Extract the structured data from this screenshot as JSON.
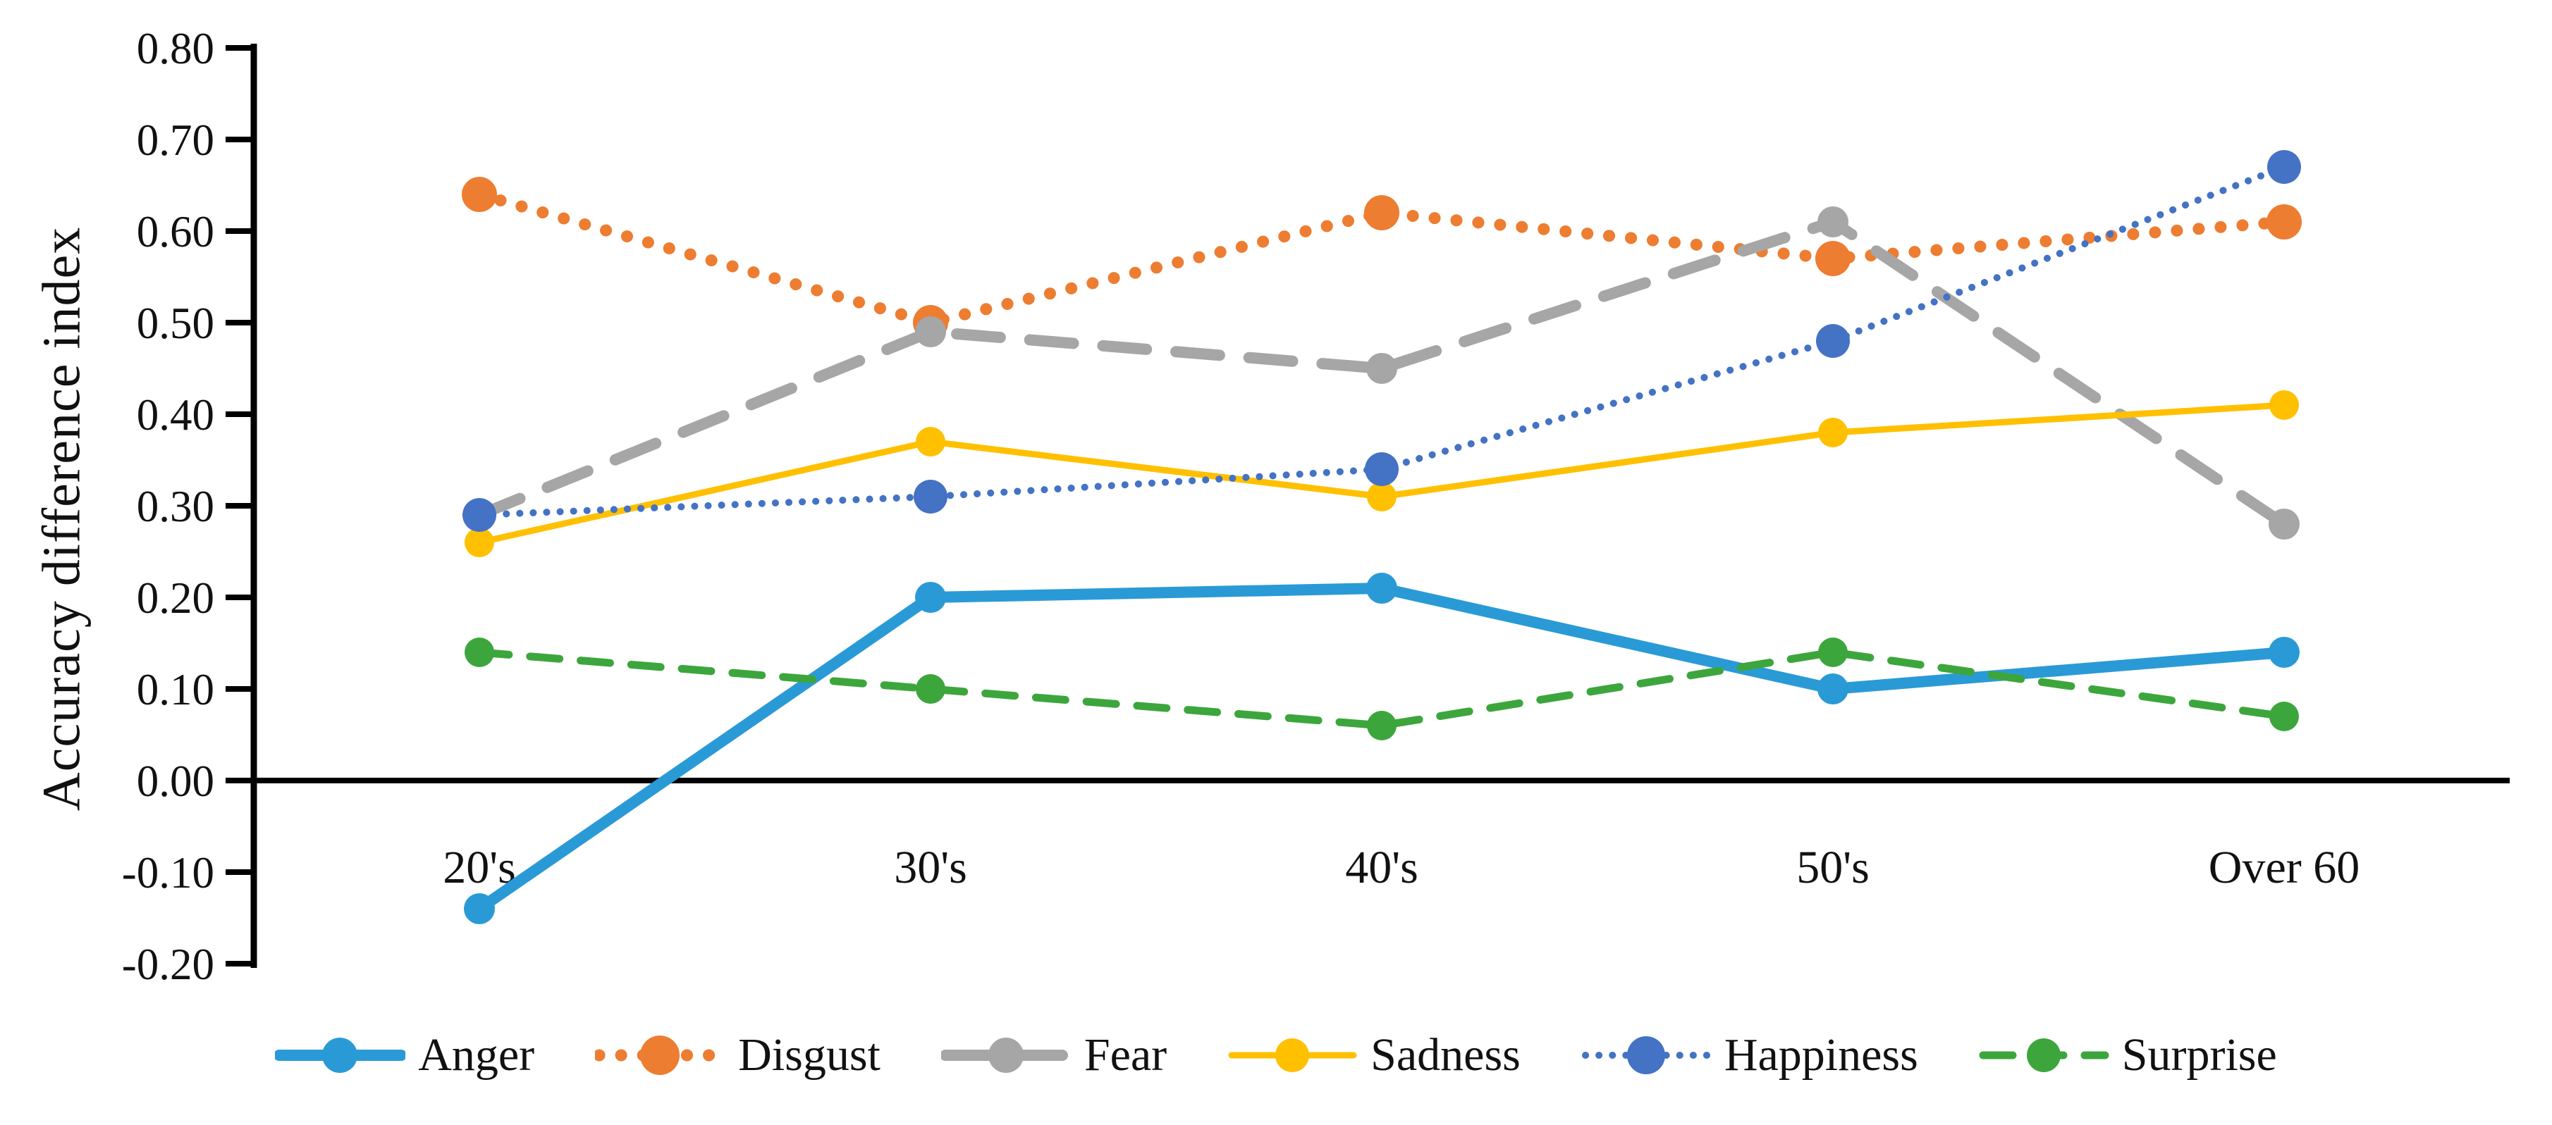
{
  "figure": {
    "ylabel": "Accuracy difference index"
  },
  "chart_data": {
    "type": "line",
    "title": "",
    "xlabel": "",
    "ylabel": "Accuracy difference index",
    "categories": [
      "20's",
      "30's",
      "40's",
      "50's",
      "Over 60"
    ],
    "ylim": [
      -0.2,
      0.8
    ],
    "ytick_step": 0.1,
    "ytick_labels": [
      "0.80",
      "0.70",
      "0.60",
      "0.50",
      "0.40",
      "0.30",
      "0.20",
      "0.10",
      "0.00",
      "-0.10",
      "-0.20"
    ],
    "grid": false,
    "legend_position": "bottom",
    "axis_color": "#000000",
    "series": [
      {
        "name": "Anger",
        "color": "#2A9AD6",
        "style": "solid",
        "values": [
          -0.14,
          0.2,
          0.21,
          0.1,
          0.14
        ]
      },
      {
        "name": "Disgust",
        "color": "#ED7D31",
        "style": "dotted",
        "values": [
          0.64,
          0.5,
          0.62,
          0.57,
          0.61
        ]
      },
      {
        "name": "Fear",
        "color": "#A6A6A6",
        "style": "dashed",
        "values": [
          0.29,
          0.49,
          0.45,
          0.61,
          0.28
        ]
      },
      {
        "name": "Sadness",
        "color": "#FFC000",
        "style": "solid-thin",
        "values": [
          0.26,
          0.37,
          0.31,
          0.38,
          0.41
        ]
      },
      {
        "name": "Happiness",
        "color": "#4472C4",
        "style": "fine-dotted",
        "values": [
          0.29,
          0.31,
          0.34,
          0.48,
          0.67
        ]
      },
      {
        "name": "Surprise",
        "color": "#3CA63C",
        "style": "dashed-small",
        "values": [
          0.14,
          0.1,
          0.06,
          0.14,
          0.07
        ]
      }
    ]
  }
}
